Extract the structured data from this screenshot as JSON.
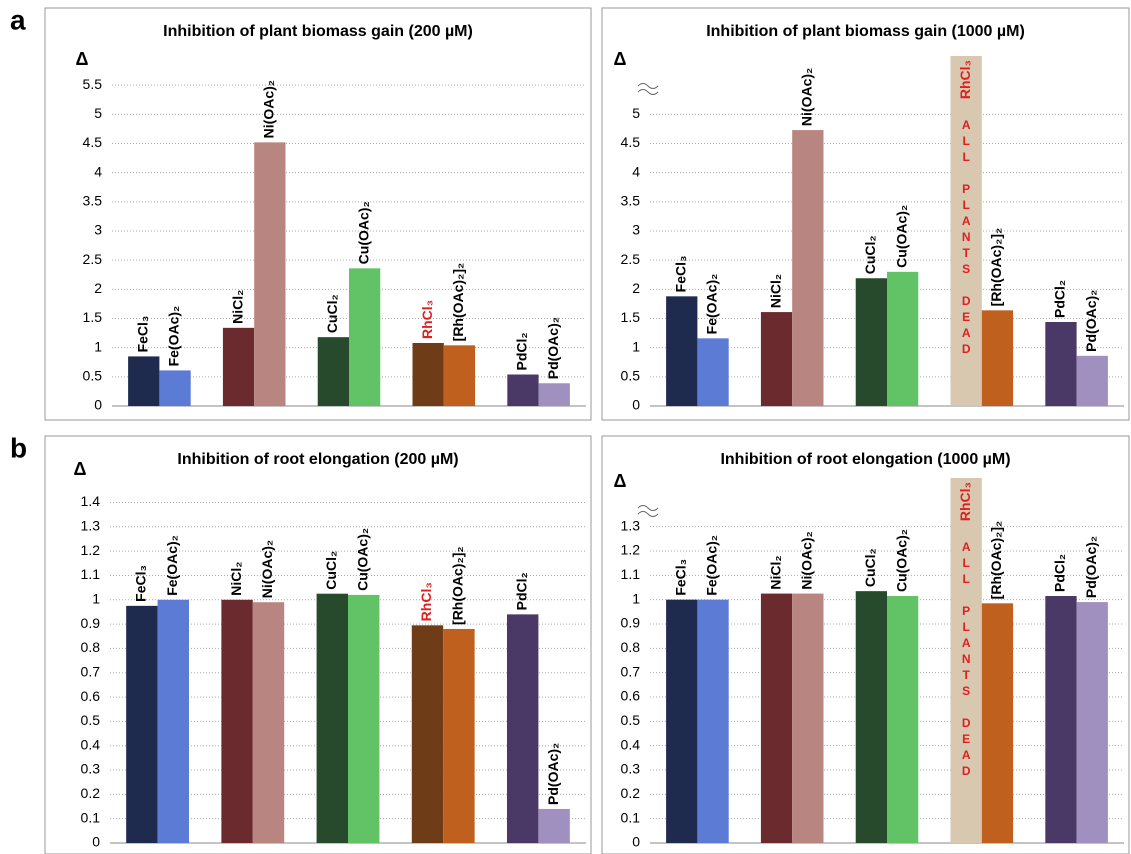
{
  "chart_data": [
    {
      "type": "bar",
      "panel": "a",
      "title": "Inhibition of plant biomass gain  (200 µM)",
      "y_label": "Δ",
      "categories": [
        "FeCl₃",
        "Fe(OAc)₂",
        "NiCl₂",
        "Ni(OAc)₂",
        "CuCl₂",
        "Cu(OAc)₂",
        "RhCl₃",
        "[Rh(OAc)₂]₂",
        "PdCl₂",
        "Pd(OAc)₂"
      ],
      "values": [
        0.85,
        0.61,
        1.34,
        4.52,
        1.18,
        2.36,
        1.08,
        1.04,
        0.54,
        0.39
      ],
      "colors": [
        "#1f2a4f",
        "#5b7bd5",
        "#6b2a2e",
        "#b98581",
        "#264a2b",
        "#62c266",
        "#6e3d17",
        "#c0601f",
        "#4a3866",
        "#a090c0"
      ],
      "label_colors": [
        "#000",
        "#000",
        "#000",
        "#000",
        "#000",
        "#000",
        "#e02020",
        "#000",
        "#000",
        "#000"
      ],
      "ylim": [
        0,
        6
      ],
      "yticks": [
        0,
        0.5,
        1,
        1.5,
        2,
        2.5,
        3,
        3.5,
        4,
        4.5,
        5,
        5.5
      ],
      "grid": true
    },
    {
      "type": "bar",
      "title": "Inhibition of plant biomass gain (1000 µM)",
      "y_label": "Δ",
      "axis_break": true,
      "dead_note": "ALL PLANTS DEAD",
      "categories": [
        "FeCl₃",
        "Fe(OAc)₂",
        "NiCl₂",
        "Ni(OAc)₂",
        "CuCl₂",
        "Cu(OAc)₂",
        "RhCl₃",
        "[Rh(OAc)₂]₂",
        "PdCl₂",
        "Pd(OAc)₂"
      ],
      "values": [
        1.88,
        1.16,
        1.61,
        4.73,
        2.19,
        2.3,
        null,
        1.64,
        1.44,
        0.86
      ],
      "colors": [
        "#1f2a4f",
        "#5b7bd5",
        "#6b2a2e",
        "#b98581",
        "#264a2b",
        "#62c266",
        "#d8c8b0",
        "#c0601f",
        "#4a3866",
        "#a090c0"
      ],
      "label_colors": [
        "#000",
        "#000",
        "#000",
        "#000",
        "#000",
        "#000",
        "#e02020",
        "#000",
        "#000",
        "#000"
      ],
      "ylim": [
        0,
        6
      ],
      "yticks": [
        0,
        0.5,
        1,
        1.5,
        2,
        2.5,
        3,
        3.5,
        4,
        4.5,
        5
      ],
      "grid": true
    },
    {
      "type": "bar",
      "panel": "b",
      "title": "Inhibition of root elongation  (200 µM)",
      "y_label": "Δ",
      "categories": [
        "FeCl₃",
        "Fe(OAc)₂",
        "NiCl₂",
        "Ni(OAc)₂",
        "CuCl₂",
        "Cu(OAc)₂",
        "RhCl₃",
        "[Rh(OAc)₂]₂",
        "PdCl₂",
        "Pd(OAc)₂"
      ],
      "values": [
        0.975,
        1.0,
        1.0,
        0.99,
        1.025,
        1.02,
        0.895,
        0.88,
        0.94,
        0.14
      ],
      "colors": [
        "#1f2a4f",
        "#5b7bd5",
        "#6b2a2e",
        "#b98581",
        "#264a2b",
        "#62c266",
        "#6e3d17",
        "#c0601f",
        "#4a3866",
        "#a090c0"
      ],
      "label_colors": [
        "#000",
        "#000",
        "#000",
        "#000",
        "#000",
        "#000",
        "#e02020",
        "#000",
        "#000",
        "#000"
      ],
      "ylim": [
        0,
        1.55
      ],
      "yticks": [
        0,
        0.1,
        0.2,
        0.3,
        0.4,
        0.5,
        0.6,
        0.7,
        0.8,
        0.9,
        1,
        1.1,
        1.2,
        1.3,
        1.4
      ],
      "grid": true
    },
    {
      "type": "bar",
      "title": "Inhibition of root elongation (1000 µM)",
      "y_label": "Δ",
      "axis_break": true,
      "dead_note": "ALL PLANTS DEAD",
      "categories": [
        "FeCl₃",
        "Fe(OAc)₂",
        "NiCl₂",
        "Ni(OAc)₂",
        "CuCl₂",
        "Cu(OAc)₂",
        "RhCl₃",
        "[Rh(OAc)₂]₂",
        "PdCl₂",
        "Pd(OAc)₂"
      ],
      "values": [
        1.0,
        1.0,
        1.025,
        1.025,
        1.035,
        1.015,
        null,
        0.985,
        1.015,
        0.99
      ],
      "colors": [
        "#1f2a4f",
        "#5b7bd5",
        "#6b2a2e",
        "#b98581",
        "#264a2b",
        "#62c266",
        "#d8c8b0",
        "#c0601f",
        "#4a3866",
        "#a090c0"
      ],
      "label_colors": [
        "#000",
        "#000",
        "#000",
        "#000",
        "#000",
        "#000",
        "#e02020",
        "#000",
        "#000",
        "#000"
      ],
      "ylim": [
        0,
        1.5
      ],
      "yticks": [
        0,
        0.1,
        0.2,
        0.3,
        0.4,
        0.5,
        0.6,
        0.7,
        0.8,
        0.9,
        1,
        1.1,
        1.2,
        1.3
      ],
      "grid": true
    }
  ]
}
